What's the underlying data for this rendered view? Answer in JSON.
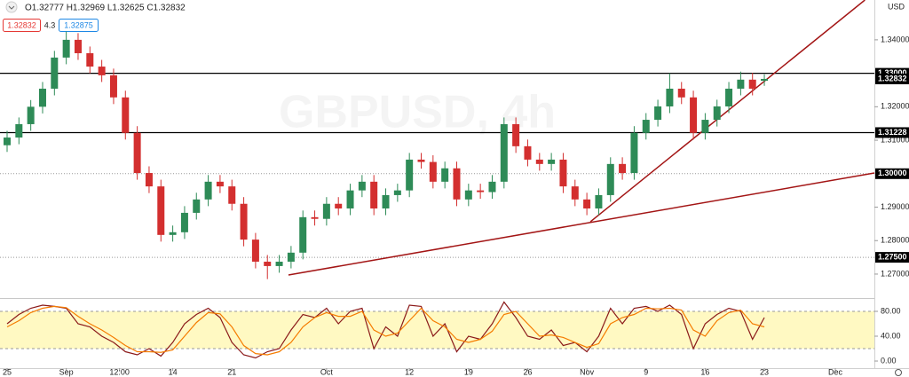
{
  "chart_data": {
    "type": "candlestick",
    "title": "GBPUSD, 4h",
    "header": {
      "ohlc": "O1.32777 H1.32969 L1.32625 C1.32832",
      "bid": "1.32832",
      "spread": "4.3",
      "ask": "1.32875"
    },
    "axis_unit": "USD",
    "grid": false,
    "up_color": "#2e8b57",
    "down_color": "#d32f2f",
    "xlim": [
      -0.6,
      73.3
    ],
    "xticks": [
      {
        "value": 0,
        "label": "25"
      },
      {
        "value": 5,
        "label": "Sep"
      },
      {
        "value": 9.5,
        "label": "12:00"
      },
      {
        "value": 14,
        "label": "14"
      },
      {
        "value": 19,
        "label": "21"
      },
      {
        "value": 27,
        "label": "Oct"
      },
      {
        "value": 34,
        "label": "12"
      },
      {
        "value": 39,
        "label": "19"
      },
      {
        "value": 44,
        "label": "26"
      },
      {
        "value": 49,
        "label": "Nov"
      },
      {
        "value": 54,
        "label": "9"
      },
      {
        "value": 59,
        "label": "16"
      },
      {
        "value": 64,
        "label": "23"
      },
      {
        "value": 70,
        "label": "Dec"
      }
    ],
    "ylim": [
      1.2631,
      1.3519
    ],
    "yticks": [
      {
        "value": 1.27,
        "label": "1.27000"
      },
      {
        "value": 1.28,
        "label": "1.28000"
      },
      {
        "value": 1.29,
        "label": "1.29000"
      },
      {
        "value": 1.31,
        "label": "1.31000"
      },
      {
        "value": 1.32,
        "label": "1.32000"
      },
      {
        "value": 1.34,
        "label": "1.34000"
      }
    ],
    "open": [
      1.3085,
      1.3108,
      1.3148,
      1.32,
      1.3254,
      1.3347,
      1.34,
      1.336,
      1.332,
      1.3294,
      1.3228,
      1.3122,
      1.3002,
      1.2962,
      1.2817,
      1.2825,
      1.2883,
      1.2923,
      1.2976,
      1.2962,
      1.291,
      1.2803,
      1.2737,
      1.2724,
      1.2737,
      1.2764,
      1.287,
      1.2865,
      1.291,
      1.2896,
      1.295,
      1.2976,
      1.2896,
      1.2936,
      1.295,
      1.3042,
      1.3035,
      1.2976,
      1.3016,
      1.2923,
      1.295,
      1.2945,
      1.2976,
      1.3148,
      1.3082,
      1.3042,
      1.3029,
      1.3042,
      1.2962,
      1.2923,
      1.2896,
      1.2936,
      1.3029,
      1.3002,
      1.3122,
      1.3161,
      1.3201,
      1.3254,
      1.3228,
      1.3122,
      1.3161,
      1.3201,
      1.3254,
      1.3281,
      1.32777
    ],
    "high": [
      1.3128,
      1.3168,
      1.322,
      1.3274,
      1.3367,
      1.3425,
      1.342,
      1.338,
      1.334,
      1.3314,
      1.3248,
      1.3142,
      1.3022,
      1.2982,
      1.2845,
      1.2903,
      1.2943,
      1.2996,
      1.2996,
      1.2982,
      1.293,
      1.2823,
      1.2757,
      1.2757,
      1.2784,
      1.289,
      1.289,
      1.293,
      1.293,
      1.297,
      1.2996,
      1.2996,
      1.2956,
      1.297,
      1.3062,
      1.3062,
      1.3055,
      1.3036,
      1.3036,
      1.297,
      1.297,
      1.2996,
      1.3168,
      1.3168,
      1.3102,
      1.3062,
      1.3062,
      1.3062,
      1.2982,
      1.2943,
      1.2956,
      1.3049,
      1.3049,
      1.3142,
      1.3181,
      1.3221,
      1.33,
      1.3274,
      1.3248,
      1.3181,
      1.3221,
      1.3274,
      1.3305,
      1.3301,
      1.32969
    ],
    "low": [
      1.3065,
      1.3088,
      1.3128,
      1.318,
      1.3234,
      1.3327,
      1.334,
      1.33,
      1.3274,
      1.3208,
      1.3102,
      1.2982,
      1.2942,
      1.2797,
      1.2797,
      1.2805,
      1.2863,
      1.2903,
      1.2942,
      1.289,
      1.2783,
      1.2717,
      1.2685,
      1.2704,
      1.2717,
      1.2744,
      1.2845,
      1.2845,
      1.2876,
      1.2876,
      1.293,
      1.2876,
      1.2876,
      1.2916,
      1.293,
      1.3015,
      1.2956,
      1.2956,
      1.2903,
      1.2903,
      1.2925,
      1.2925,
      1.2956,
      1.3062,
      1.3022,
      1.3009,
      1.3009,
      1.2942,
      1.2903,
      1.2876,
      1.2876,
      1.2916,
      1.2982,
      1.2982,
      1.3102,
      1.3141,
      1.3181,
      1.3208,
      1.3102,
      1.3102,
      1.3141,
      1.3181,
      1.3234,
      1.3234,
      1.32625
    ],
    "close": [
      1.3108,
      1.3148,
      1.32,
      1.3254,
      1.3347,
      1.34,
      1.336,
      1.332,
      1.3294,
      1.3228,
      1.3122,
      1.3002,
      1.2962,
      1.2817,
      1.2825,
      1.2883,
      1.2923,
      1.2976,
      1.2962,
      1.291,
      1.2803,
      1.2737,
      1.2724,
      1.2737,
      1.2764,
      1.287,
      1.2865,
      1.291,
      1.2896,
      1.295,
      1.2976,
      1.2896,
      1.2936,
      1.295,
      1.3042,
      1.3035,
      1.2976,
      1.3016,
      1.2923,
      1.295,
      1.2945,
      1.2976,
      1.3148,
      1.3082,
      1.3042,
      1.3029,
      1.3042,
      1.2962,
      1.2923,
      1.2896,
      1.2936,
      1.3029,
      1.3002,
      1.3122,
      1.3161,
      1.3201,
      1.3254,
      1.3228,
      1.3122,
      1.3161,
      1.3201,
      1.3254,
      1.3281,
      1.3254,
      1.32832
    ],
    "last_price": {
      "value": 1.32832,
      "label": "1.32832"
    },
    "hlines": [
      {
        "value": 1.33,
        "label": "1.33000",
        "color": "#000000",
        "style": "solid"
      },
      {
        "value": 1.31228,
        "label": "1.31228",
        "color": "#000000",
        "style": "solid"
      },
      {
        "value": 1.3,
        "label": "1.30000",
        "color": "#999999",
        "style": "dotted"
      },
      {
        "value": 1.275,
        "label": "1.27500",
        "color": "#999999",
        "style": "dotted"
      }
    ],
    "trendlines": [
      {
        "x": [
          23.78,
          73.3
        ],
        "y": [
          1.26973,
          1.3002
        ],
        "color": "#a31515"
      },
      {
        "x": [
          49.3,
          72.5
        ],
        "y": [
          1.28564,
          1.3519
        ],
        "color": "#a31515"
      }
    ],
    "oscillator": {
      "ylim": [
        -11.4,
        100
      ],
      "yticks": [
        {
          "value": 80,
          "label": "80.00"
        },
        {
          "value": 40,
          "label": "40.00"
        },
        {
          "value": 0,
          "label": "0.00"
        }
      ],
      "band": [
        20,
        80
      ],
      "band_color": "#fff7b3",
      "series": [
        {
          "color": "#8b1a1a",
          "values": [
            60,
            75,
            85,
            90,
            88,
            85,
            60,
            55,
            40,
            30,
            15,
            10,
            20,
            8,
            30,
            60,
            75,
            85,
            70,
            30,
            10,
            5,
            15,
            20,
            50,
            75,
            70,
            85,
            60,
            80,
            85,
            20,
            55,
            40,
            90,
            88,
            40,
            60,
            15,
            40,
            35,
            60,
            95,
            70,
            40,
            35,
            50,
            25,
            30,
            15,
            40,
            85,
            60,
            85,
            88,
            80,
            90,
            75,
            20,
            60,
            75,
            85,
            80,
            35,
            70
          ]
        },
        {
          "color": "#f57c00",
          "values": [
            55,
            65,
            78,
            85,
            88,
            86,
            72,
            60,
            50,
            38,
            25,
            15,
            15,
            14,
            18,
            40,
            62,
            78,
            76,
            55,
            25,
            12,
            10,
            15,
            30,
            55,
            70,
            78,
            72,
            72,
            80,
            50,
            40,
            45,
            65,
            85,
            65,
            55,
            35,
            30,
            35,
            48,
            75,
            80,
            60,
            40,
            42,
            38,
            30,
            22,
            28,
            60,
            70,
            75,
            85,
            84,
            85,
            82,
            50,
            40,
            65,
            78,
            82,
            60,
            55
          ]
        }
      ]
    }
  }
}
